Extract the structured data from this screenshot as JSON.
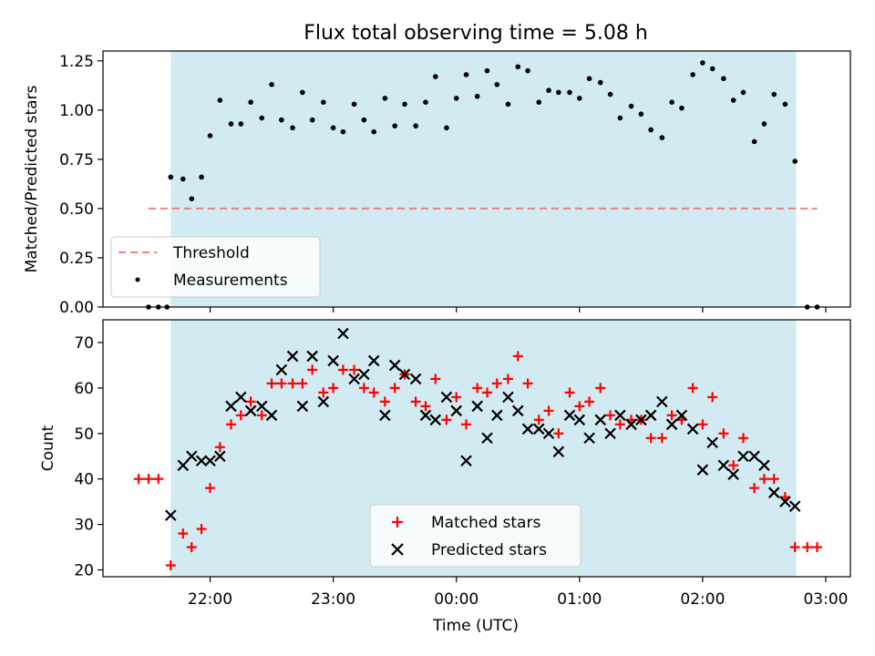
{
  "title": "Flux total observing time = 5.08 h",
  "chart_data": [
    {
      "type": "scatter",
      "ylabel": "Matched/Predicted stars",
      "xlabel": "",
      "x_unit": "hours (UTC, 22.0 = 22:00, 24.0 = 00:00)",
      "xlim": [
        21.13,
        27.2
      ],
      "ylim": [
        0,
        1.3
      ],
      "yticks": [
        "0.00",
        "0.25",
        "0.50",
        "0.75",
        "1.00",
        "1.25"
      ],
      "shaded_span": [
        21.68,
        26.76
      ],
      "threshold": {
        "name": "Threshold",
        "y": 0.5,
        "x": [
          21.5,
          26.93
        ],
        "color": "#f08080"
      },
      "series": [
        {
          "name": "Measurements",
          "color": "#000000",
          "x": [
            21.5,
            21.58,
            21.65,
            21.68,
            21.78,
            21.85,
            21.93,
            22.0,
            22.08,
            22.17,
            22.25,
            22.33,
            22.42,
            22.5,
            22.58,
            22.67,
            22.75,
            22.83,
            22.92,
            23.0,
            23.08,
            23.17,
            23.25,
            23.33,
            23.42,
            23.5,
            23.58,
            23.67,
            23.75,
            23.83,
            23.92,
            24.0,
            24.08,
            24.17,
            24.25,
            24.33,
            24.42,
            24.5,
            24.58,
            24.67,
            24.75,
            24.83,
            24.92,
            25.0,
            25.08,
            25.17,
            25.25,
            25.33,
            25.42,
            25.5,
            25.58,
            25.67,
            25.75,
            25.83,
            25.92,
            26.0,
            26.08,
            26.17,
            26.25,
            26.33,
            26.42,
            26.5,
            26.58,
            26.67,
            26.75,
            26.85,
            26.93
          ],
          "y": [
            0,
            0,
            0,
            0.66,
            0.65,
            0.55,
            0.66,
            0.87,
            1.05,
            0.93,
            0.93,
            1.04,
            0.96,
            1.13,
            0.95,
            0.91,
            1.09,
            0.95,
            1.04,
            0.91,
            0.89,
            1.03,
            0.95,
            0.89,
            1.06,
            0.92,
            1.03,
            0.92,
            1.04,
            1.17,
            0.91,
            1.06,
            1.18,
            1.07,
            1.2,
            1.13,
            1.03,
            1.22,
            1.2,
            1.04,
            1.1,
            1.09,
            1.09,
            1.06,
            1.16,
            1.14,
            1.08,
            0.96,
            1.02,
            0.98,
            0.9,
            0.86,
            1.04,
            1.01,
            1.18,
            1.24,
            1.21,
            1.16,
            1.05,
            1.09,
            0.84,
            0.93,
            1.08,
            1.03,
            0.74,
            0,
            0
          ]
        }
      ],
      "legend": "lower-left"
    },
    {
      "type": "scatter",
      "ylabel": "Count",
      "xlabel": "Time (UTC)",
      "x_unit": "hours (UTC, 22.0 = 22:00, 24.0 = 00:00)",
      "xlim": [
        21.13,
        27.2
      ],
      "ylim": [
        18.5,
        75
      ],
      "yticks": [
        "20",
        "30",
        "40",
        "50",
        "60",
        "70"
      ],
      "xticks": [
        "22:00",
        "23:00",
        "00:00",
        "01:00",
        "02:00",
        "03:00"
      ],
      "shaded_span": [
        21.68,
        26.76
      ],
      "series": [
        {
          "name": "Matched stars",
          "marker": "plus",
          "color": "#ff0000",
          "x": [
            21.42,
            21.5,
            21.58,
            21.68,
            21.78,
            21.85,
            21.93,
            22.0,
            22.08,
            22.17,
            22.25,
            22.33,
            22.42,
            22.5,
            22.58,
            22.67,
            22.75,
            22.83,
            22.92,
            23.0,
            23.08,
            23.17,
            23.25,
            23.33,
            23.42,
            23.5,
            23.58,
            23.67,
            23.75,
            23.83,
            23.92,
            24.0,
            24.08,
            24.17,
            24.25,
            24.33,
            24.42,
            24.5,
            24.58,
            24.67,
            24.75,
            24.83,
            24.92,
            25.0,
            25.08,
            25.17,
            25.25,
            25.33,
            25.42,
            25.5,
            25.58,
            25.67,
            25.75,
            25.83,
            25.92,
            26.0,
            26.08,
            26.17,
            26.25,
            26.33,
            26.42,
            26.5,
            26.58,
            26.67,
            26.75,
            26.85,
            26.93
          ],
          "y": [
            40,
            40,
            40,
            21,
            28,
            25,
            29,
            38,
            47,
            52,
            54,
            57,
            54,
            61,
            61,
            61,
            61,
            64,
            59,
            60,
            64,
            64,
            60,
            59,
            57,
            60,
            63,
            57,
            56,
            62,
            53,
            58,
            52,
            60,
            59,
            61,
            62,
            67,
            61,
            53,
            55,
            50,
            59,
            56,
            57,
            60,
            54,
            52,
            53,
            53,
            49,
            49,
            54,
            53,
            60,
            52,
            58,
            50,
            43,
            49,
            38,
            40,
            40,
            36,
            25,
            25,
            25
          ]
        },
        {
          "name": "Predicted stars",
          "marker": "x",
          "color": "#000000",
          "x": [
            21.68,
            21.78,
            21.85,
            21.93,
            22.0,
            22.08,
            22.17,
            22.25,
            22.33,
            22.42,
            22.5,
            22.58,
            22.67,
            22.75,
            22.83,
            22.92,
            23.0,
            23.08,
            23.17,
            23.25,
            23.33,
            23.42,
            23.5,
            23.58,
            23.67,
            23.75,
            23.83,
            23.92,
            24.0,
            24.08,
            24.17,
            24.25,
            24.33,
            24.42,
            24.5,
            24.58,
            24.67,
            24.75,
            24.83,
            24.92,
            25.0,
            25.08,
            25.17,
            25.25,
            25.33,
            25.42,
            25.5,
            25.58,
            25.67,
            25.75,
            25.83,
            25.92,
            26.0,
            26.08,
            26.17,
            26.25,
            26.33,
            26.42,
            26.5,
            26.58,
            26.67,
            26.75
          ],
          "y": [
            32,
            43,
            45,
            44,
            44,
            45,
            56,
            58,
            55,
            56,
            54,
            64,
            67,
            56,
            67,
            57,
            66,
            72,
            62,
            63,
            66,
            54,
            65,
            63,
            62,
            54,
            53,
            58,
            55,
            44,
            56,
            49,
            54,
            58,
            55,
            51,
            51,
            50,
            46,
            54,
            53,
            49,
            53,
            50,
            54,
            52,
            53,
            54,
            57,
            52,
            54,
            51,
            42,
            48,
            43,
            41,
            45,
            45,
            43,
            37,
            35,
            34
          ]
        }
      ],
      "legend": "lower-center"
    }
  ]
}
